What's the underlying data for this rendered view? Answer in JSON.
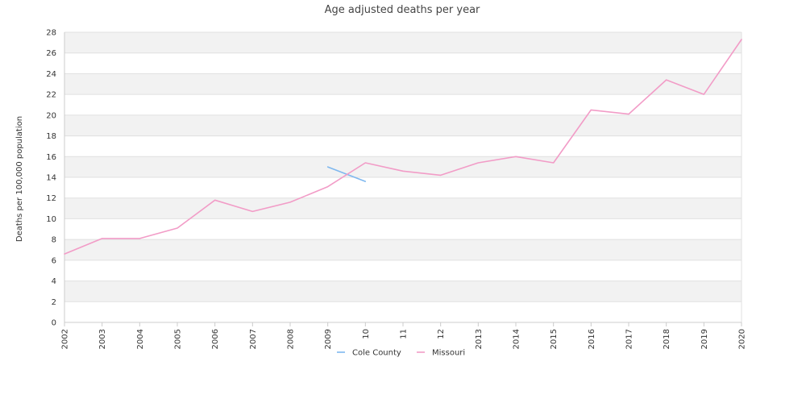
{
  "chart_data": {
    "type": "line",
    "title": "Age adjusted deaths per year",
    "xlabel": "",
    "ylabel": "Deaths per 100,000 population",
    "x_tick_labels": [
      "2002",
      "2003",
      "2004",
      "2005",
      "2006",
      "2007",
      "2008",
      "2009",
      "10",
      "11",
      "12",
      "2013",
      "2014",
      "2015",
      "2016",
      "2017",
      "2018",
      "2019",
      "2020"
    ],
    "ylim": [
      0,
      28
    ],
    "y_ticks": [
      0,
      2,
      4,
      6,
      8,
      10,
      12,
      14,
      16,
      18,
      20,
      22,
      24,
      26,
      28
    ],
    "grid": true,
    "legend_position": "bottom-center",
    "series": [
      {
        "name": "Cole County",
        "color": "#7fb8ef",
        "points": [
          [
            7,
            15.0
          ],
          [
            8,
            13.6
          ]
        ]
      },
      {
        "name": "Missouri",
        "color": "#f29cc7",
        "points": [
          [
            0,
            6.6
          ],
          [
            1,
            8.1
          ],
          [
            2,
            8.1
          ],
          [
            3,
            9.1
          ],
          [
            4,
            11.8
          ],
          [
            5,
            10.7
          ],
          [
            6,
            11.6
          ],
          [
            7,
            13.1
          ],
          [
            8,
            15.4
          ],
          [
            9,
            14.6
          ],
          [
            10,
            14.2
          ],
          [
            11,
            15.4
          ],
          [
            12,
            16.0
          ],
          [
            13,
            15.4
          ],
          [
            14,
            20.5
          ],
          [
            15,
            20.1
          ],
          [
            16,
            23.4
          ],
          [
            17,
            22.0
          ],
          [
            18,
            27.3
          ]
        ]
      }
    ]
  }
}
